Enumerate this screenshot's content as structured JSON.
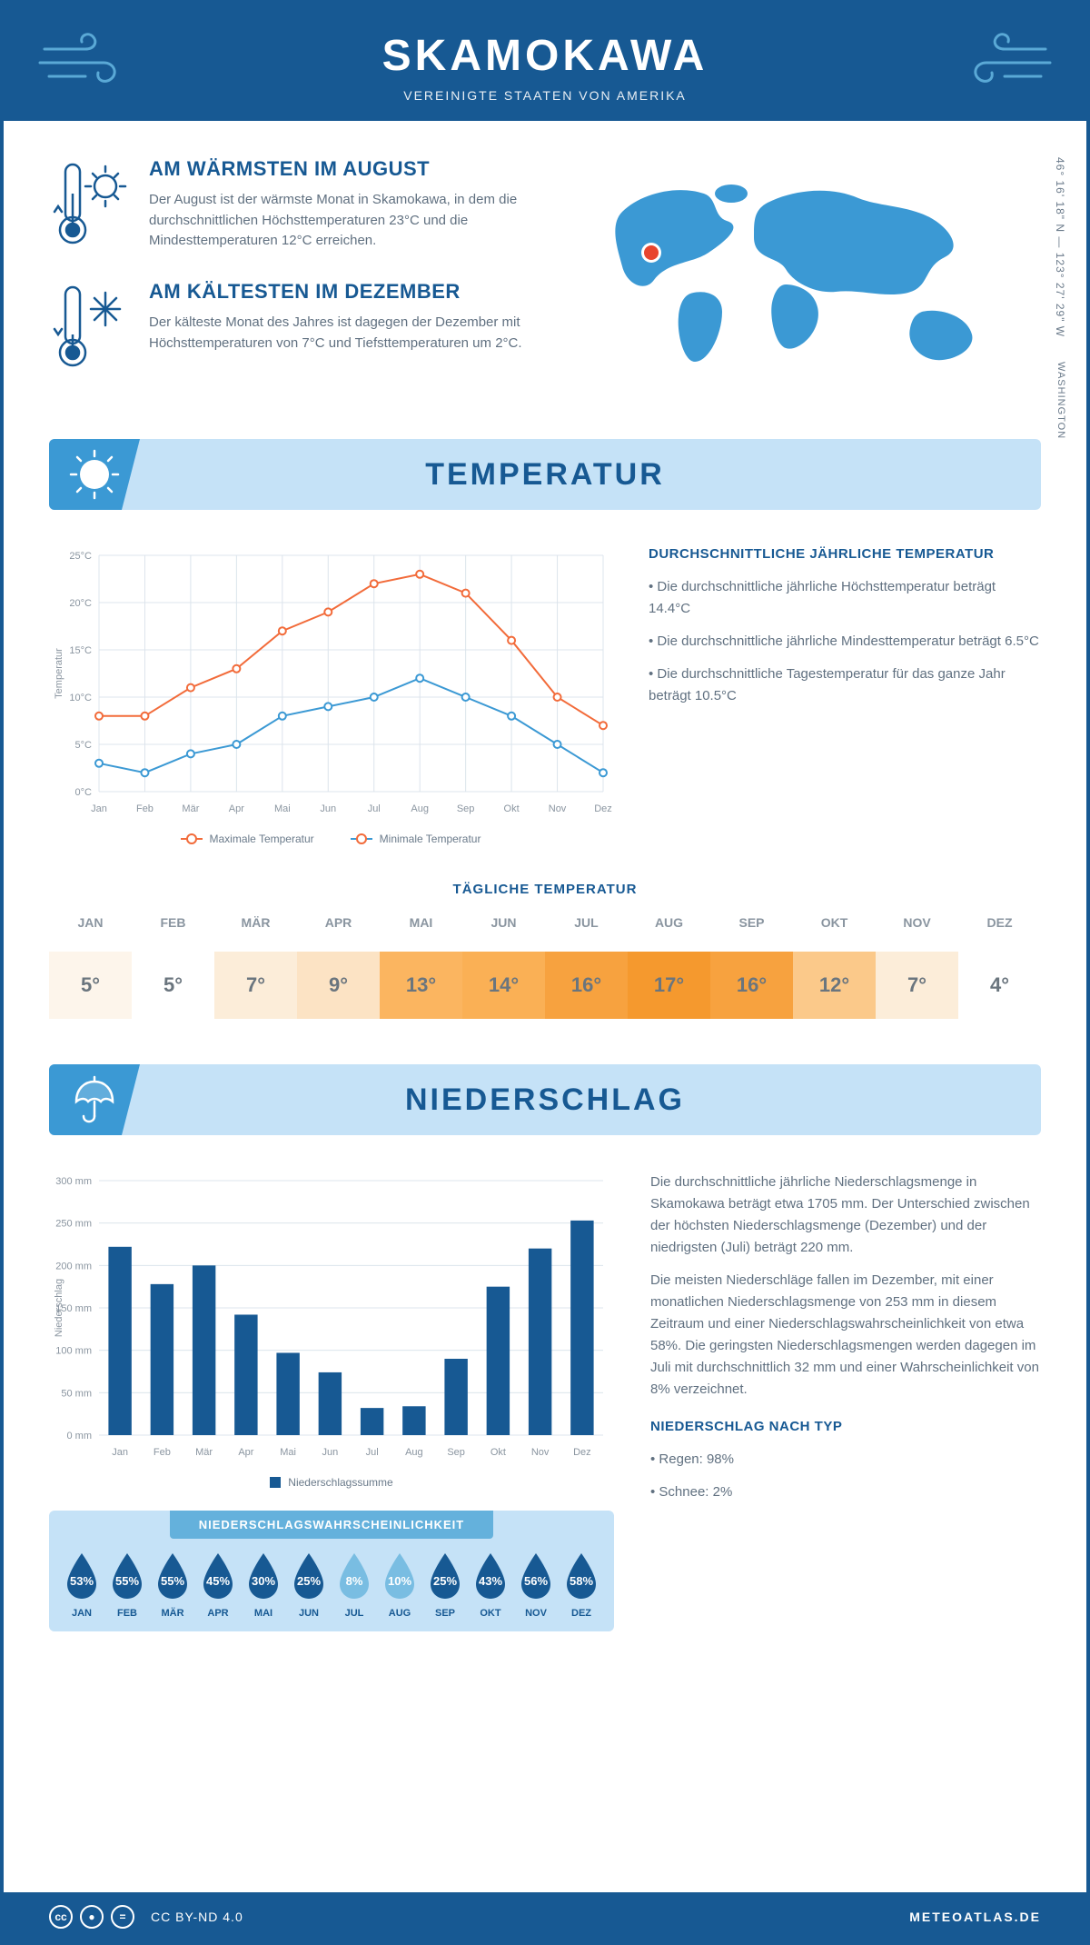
{
  "header": {
    "title": "SKAMOKAWA",
    "subtitle": "VEREINIGTE STAATEN VON AMERIKA"
  },
  "coords": "46° 16' 18\" N — 123° 27' 29\" W",
  "state": "WASHINGTON",
  "warmest": {
    "title": "AM WÄRMSTEN IM AUGUST",
    "text": "Der August ist der wärmste Monat in Skamokawa, in dem die durchschnittlichen Höchsttemperaturen 23°C und die Mindesttemperaturen 12°C erreichen."
  },
  "coldest": {
    "title": "AM KÄLTESTEN IM DEZEMBER",
    "text": "Der kälteste Monat des Jahres ist dagegen der Dezember mit Höchsttemperaturen von 7°C und Tiefsttemperaturen um 2°C."
  },
  "sections": {
    "temperature": "TEMPERATUR",
    "precipitation": "NIEDERSCHLAG"
  },
  "temp_chart": {
    "type": "line",
    "months": [
      "Jan",
      "Feb",
      "Mär",
      "Apr",
      "Mai",
      "Jun",
      "Jul",
      "Aug",
      "Sep",
      "Okt",
      "Nov",
      "Dez"
    ],
    "max_series": {
      "label": "Maximale Temperatur",
      "color": "#f26b3a",
      "values": [
        8,
        8,
        11,
        13,
        17,
        19,
        22,
        23,
        21,
        16,
        10,
        7
      ]
    },
    "min_series": {
      "label": "Minimale Temperatur",
      "color": "#3b99d4",
      "values": [
        3,
        2,
        4,
        5,
        8,
        9,
        10,
        12,
        10,
        8,
        5,
        2
      ]
    },
    "ylabel": "Temperatur",
    "ylim": [
      0,
      25
    ],
    "ytick_step": 5,
    "grid_color": "#dce4ec",
    "background": "#ffffff",
    "marker_radius": 4,
    "line_width": 2
  },
  "annual_temp": {
    "title": "DURCHSCHNITTLICHE JÄHRLICHE TEMPERATUR",
    "bullets": [
      "Die durchschnittliche jährliche Höchsttemperatur beträgt 14.4°C",
      "Die durchschnittliche jährliche Mindesttemperatur beträgt 6.5°C",
      "Die durchschnittliche Tagestemperatur für das ganze Jahr beträgt 10.5°C"
    ]
  },
  "daily_temp": {
    "title": "TÄGLICHE TEMPERATUR",
    "months": [
      "JAN",
      "FEB",
      "MÄR",
      "APR",
      "MAI",
      "JUN",
      "JUL",
      "AUG",
      "SEP",
      "OKT",
      "NOV",
      "DEZ"
    ],
    "values": [
      "5°",
      "5°",
      "7°",
      "9°",
      "13°",
      "14°",
      "16°",
      "17°",
      "16°",
      "12°",
      "7°",
      "4°"
    ],
    "bg_colors": [
      "#fdf5eb",
      "#ffffff",
      "#fcedd9",
      "#fce3c4",
      "#fbb560",
      "#fab055",
      "#f7a23f",
      "#f5992e",
      "#f7a23f",
      "#fbc98a",
      "#fcedd9",
      "#ffffff"
    ]
  },
  "precip_chart": {
    "type": "bar",
    "months": [
      "Jan",
      "Feb",
      "Mär",
      "Apr",
      "Mai",
      "Jun",
      "Jul",
      "Aug",
      "Sep",
      "Okt",
      "Nov",
      "Dez"
    ],
    "values": [
      222,
      178,
      200,
      142,
      97,
      74,
      32,
      34,
      90,
      175,
      220,
      253
    ],
    "bar_color": "#175993",
    "legend_label": "Niederschlagssumme",
    "ylabel": "Niederschlag",
    "ylim": [
      0,
      300
    ],
    "ytick_step": 50,
    "grid_color": "#dce4ec",
    "bar_width": 0.55
  },
  "precip_text": {
    "p1": "Die durchschnittliche jährliche Niederschlagsmenge in Skamokawa beträgt etwa 1705 mm. Der Unterschied zwischen der höchsten Niederschlagsmenge (Dezember) und der niedrigsten (Juli) beträgt 220 mm.",
    "p2": "Die meisten Niederschläge fallen im Dezember, mit einer monatlichen Niederschlagsmenge von 253 mm in diesem Zeitraum und einer Niederschlagswahrscheinlichkeit von etwa 58%. Die geringsten Niederschlagsmengen werden dagegen im Juli mit durchschnittlich 32 mm und einer Wahrscheinlichkeit von 8% verzeichnet.",
    "by_type_title": "NIEDERSCHLAG NACH TYP",
    "by_type": [
      "Regen: 98%",
      "Schnee: 2%"
    ]
  },
  "precip_prob": {
    "title": "NIEDERSCHLAGSWAHRSCHEINLICHKEIT",
    "months": [
      "JAN",
      "FEB",
      "MÄR",
      "APR",
      "MAI",
      "JUN",
      "JUL",
      "AUG",
      "SEP",
      "OKT",
      "NOV",
      "DEZ"
    ],
    "values": [
      53,
      55,
      55,
      45,
      30,
      25,
      8,
      10,
      25,
      43,
      56,
      58
    ],
    "drop_dark": "#175993",
    "drop_light": "#79bde2"
  },
  "footer": {
    "license": "CC BY-ND 4.0",
    "site": "METEOATLAS.DE"
  },
  "colors": {
    "primary": "#175993",
    "light_blue": "#c5e2f7",
    "mid_blue": "#3b99d4",
    "orange": "#f26b3a"
  }
}
